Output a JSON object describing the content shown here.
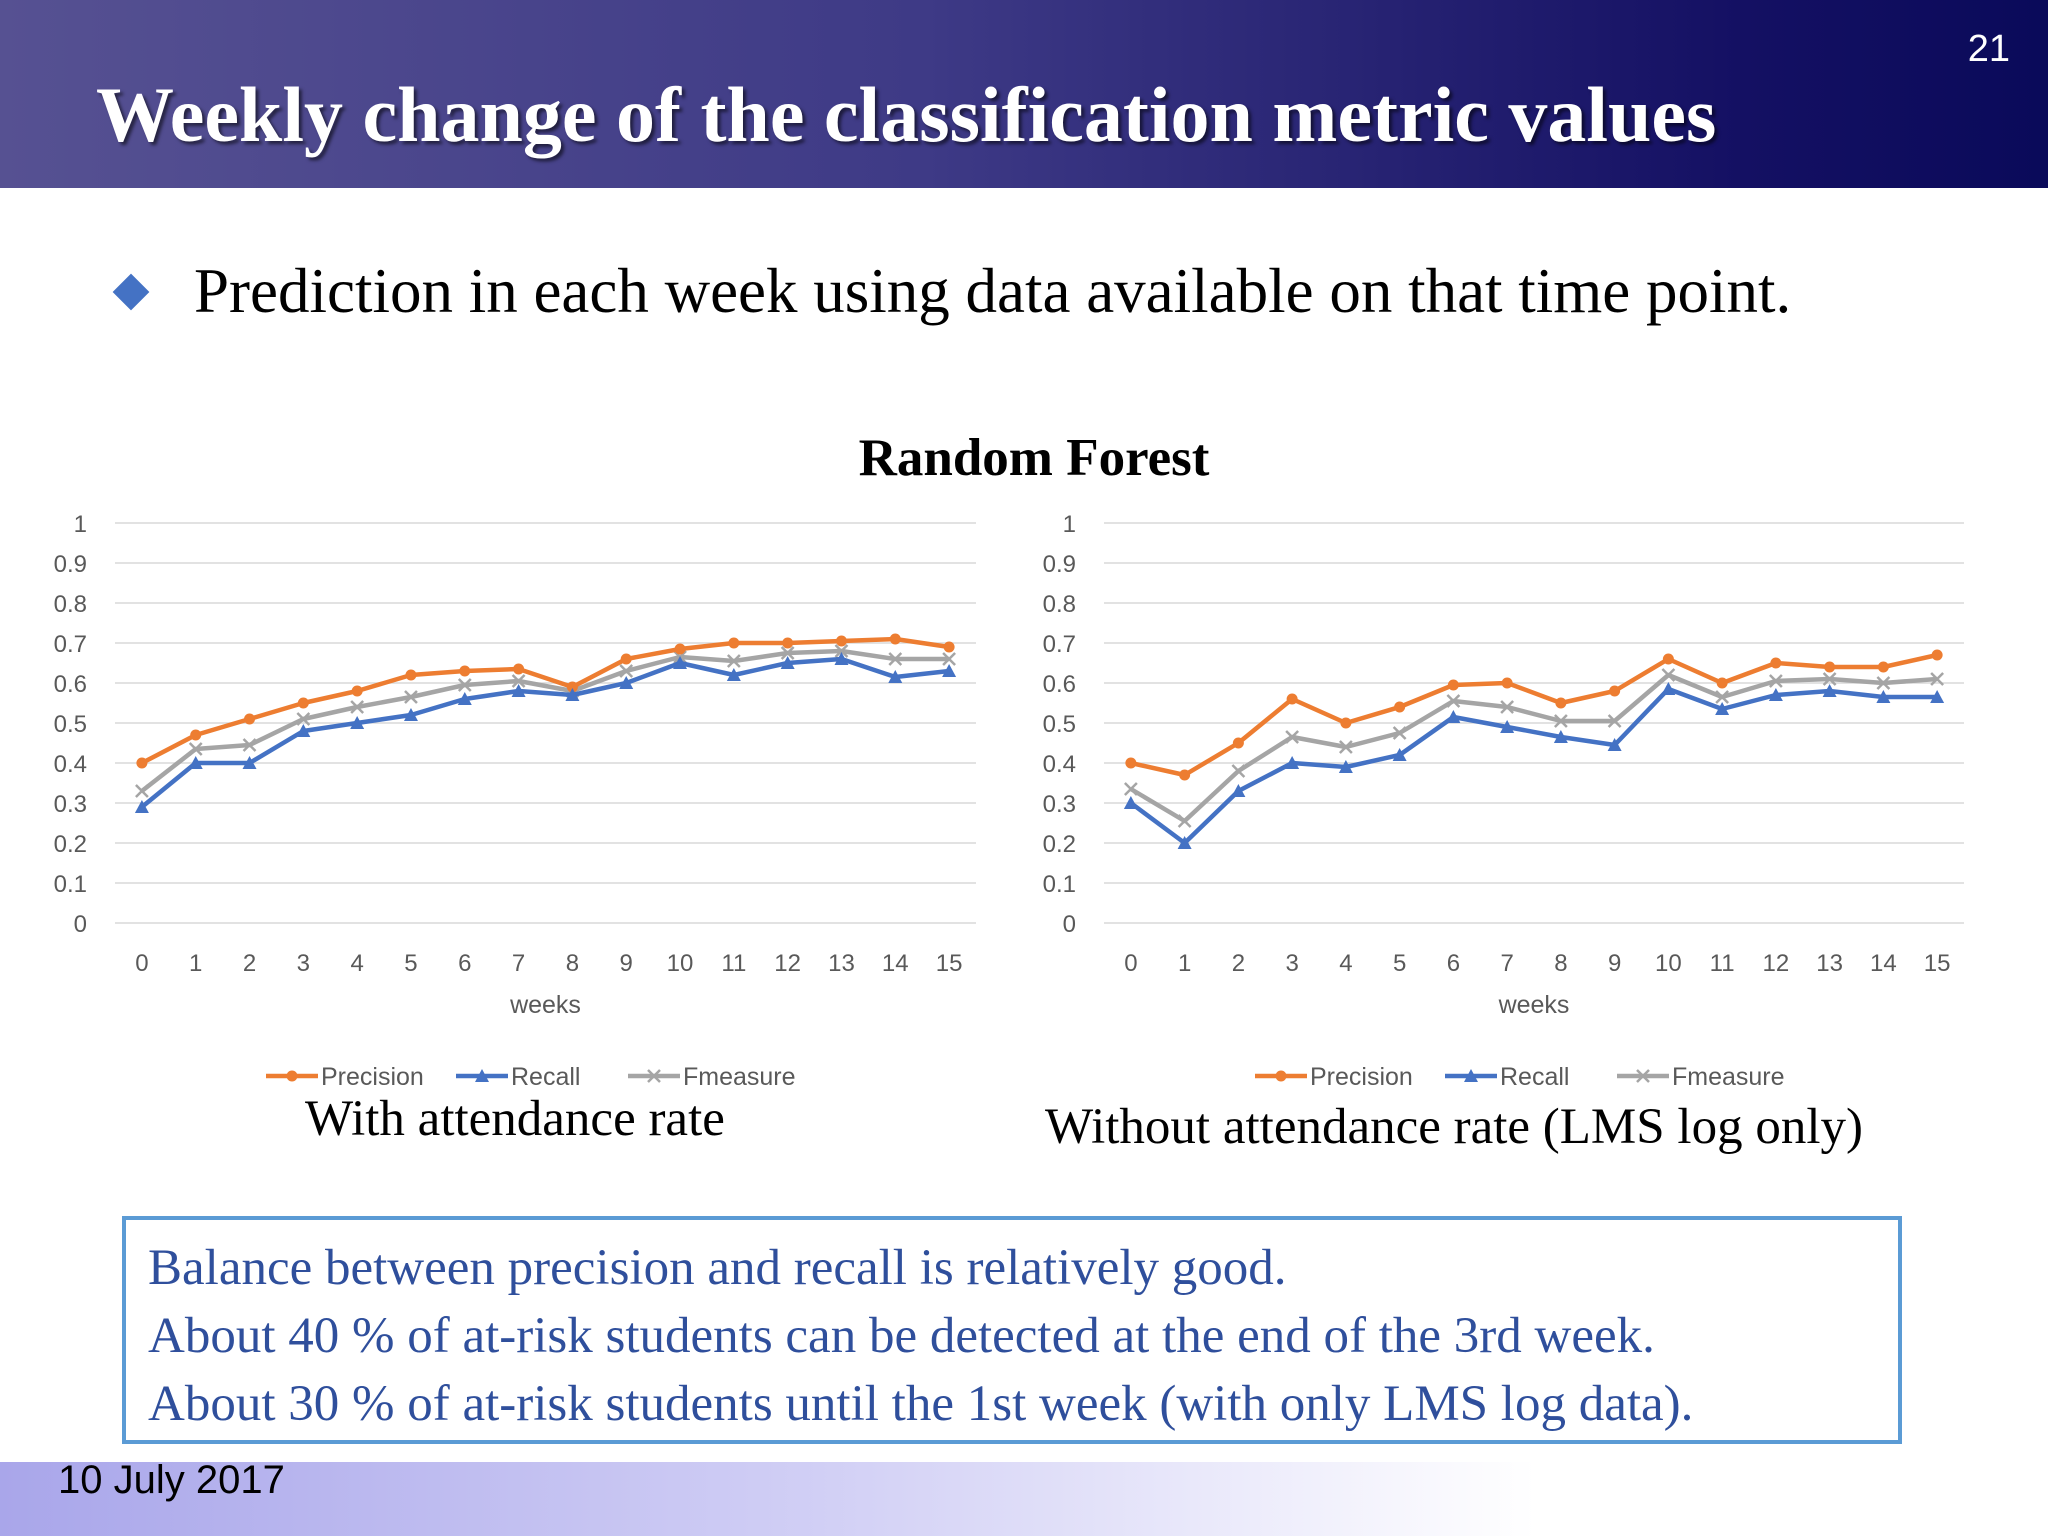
{
  "header": {
    "title": "Weekly change of the classification metric values",
    "slide_number": "21"
  },
  "bullet": {
    "text": "Prediction in each week using data available on that time point."
  },
  "subtitle": "Random Forest",
  "colors": {
    "precision": "#ed7d31",
    "recall": "#4472c4",
    "fmeasure": "#a5a5a5",
    "note_text": "#2f4f9c",
    "note_border": "#5b9bd5",
    "bullet": "#4472c4"
  },
  "chart_data": [
    {
      "type": "line",
      "caption": "With attendance rate",
      "xlabel": "weeks",
      "ylabel": "",
      "ylim": [
        0,
        1
      ],
      "yticks": [
        "0",
        "0.1",
        "0.2",
        "0.3",
        "0.4",
        "0.5",
        "0.6",
        "0.7",
        "0.8",
        "0.9",
        "1"
      ],
      "x": [
        0,
        1,
        2,
        3,
        4,
        5,
        6,
        7,
        8,
        9,
        10,
        11,
        12,
        13,
        14,
        15
      ],
      "legend_position": "bottom",
      "grid": true,
      "series": [
        {
          "name": "Precision",
          "marker": "circle",
          "values": [
            0.4,
            0.47,
            0.51,
            0.55,
            0.58,
            0.62,
            0.63,
            0.635,
            0.59,
            0.66,
            0.685,
            0.7,
            0.7,
            0.705,
            0.71,
            0.69
          ]
        },
        {
          "name": "Recall",
          "marker": "triangle",
          "values": [
            0.29,
            0.4,
            0.4,
            0.48,
            0.5,
            0.52,
            0.56,
            0.58,
            0.57,
            0.6,
            0.65,
            0.62,
            0.65,
            0.66,
            0.615,
            0.63
          ]
        },
        {
          "name": "Fmeasure",
          "marker": "x",
          "values": [
            0.33,
            0.435,
            0.445,
            0.51,
            0.54,
            0.565,
            0.595,
            0.605,
            0.58,
            0.63,
            0.665,
            0.655,
            0.675,
            0.68,
            0.66,
            0.66
          ]
        }
      ]
    },
    {
      "type": "line",
      "caption": "Without attendance rate (LMS log only)",
      "xlabel": "weeks",
      "ylabel": "",
      "ylim": [
        0,
        1
      ],
      "yticks": [
        "0",
        "0.1",
        "0.2",
        "0.3",
        "0.4",
        "0.5",
        "0.6",
        "0.7",
        "0.8",
        "0.9",
        "1"
      ],
      "x": [
        0,
        1,
        2,
        3,
        4,
        5,
        6,
        7,
        8,
        9,
        10,
        11,
        12,
        13,
        14,
        15
      ],
      "legend_position": "bottom",
      "grid": true,
      "series": [
        {
          "name": "Precision",
          "marker": "circle",
          "values": [
            0.4,
            0.37,
            0.45,
            0.56,
            0.5,
            0.54,
            0.595,
            0.6,
            0.55,
            0.58,
            0.66,
            0.6,
            0.65,
            0.64,
            0.64,
            0.67
          ]
        },
        {
          "name": "Recall",
          "marker": "triangle",
          "values": [
            0.3,
            0.2,
            0.33,
            0.4,
            0.39,
            0.42,
            0.515,
            0.49,
            0.465,
            0.445,
            0.585,
            0.535,
            0.57,
            0.58,
            0.565,
            0.565
          ]
        },
        {
          "name": "Fmeasure",
          "marker": "x",
          "values": [
            0.335,
            0.255,
            0.38,
            0.465,
            0.44,
            0.475,
            0.555,
            0.54,
            0.505,
            0.505,
            0.62,
            0.565,
            0.605,
            0.61,
            0.6,
            0.61
          ]
        }
      ]
    }
  ],
  "note": {
    "lines": [
      "Balance between precision and recall is relatively good.",
      "About 40 % of at-risk students can be detected at the end of the 3rd week.",
      "About 30 % of at-risk students until the 1st week (with only LMS log data)."
    ]
  },
  "footer": {
    "date": "10 July 2017"
  }
}
